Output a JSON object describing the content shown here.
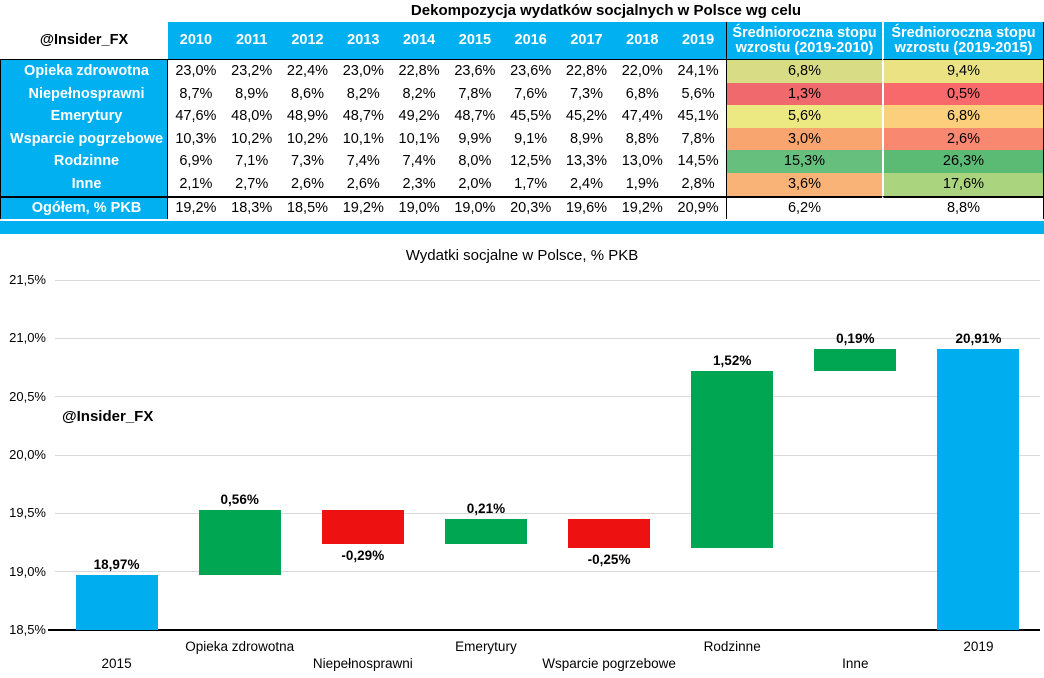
{
  "watermark": "@Insider_FX",
  "table": {
    "title": "Dekompozycja wydatków socjalnych w Polsce wg celu",
    "corner_label": "@Insider_FX",
    "years": [
      "2010",
      "2011",
      "2012",
      "2013",
      "2014",
      "2015",
      "2016",
      "2017",
      "2018",
      "2019"
    ],
    "growth_headers": [
      "Średnioroczna stopu wzrostu (2019-2010)",
      "Średnioroczna stopu wzrostu (2019-2015)"
    ],
    "rows": [
      {
        "label": "Opieka zdrowotna",
        "values": [
          "23,0%",
          "23,2%",
          "22,4%",
          "23,0%",
          "22,8%",
          "23,6%",
          "23,6%",
          "22,8%",
          "22,0%",
          "24,1%"
        ],
        "growth1": "6,8%",
        "growth1_color": "#d8dc84",
        "growth2": "9,4%",
        "growth2_color": "#ebe383"
      },
      {
        "label": "Niepełnosprawni",
        "values": [
          "8,7%",
          "8,9%",
          "8,6%",
          "8,2%",
          "8,2%",
          "7,8%",
          "7,6%",
          "7,3%",
          "6,8%",
          "5,6%"
        ],
        "growth1": "1,3%",
        "growth1_color": "#f0696c",
        "growth2": "0,5%",
        "growth2_color": "#f8696b"
      },
      {
        "label": "Emerytury",
        "values": [
          "47,6%",
          "48,0%",
          "48,9%",
          "48,7%",
          "49,2%",
          "48,7%",
          "45,5%",
          "45,2%",
          "47,4%",
          "45,1%"
        ],
        "growth1": "5,6%",
        "growth1_color": "#ece983",
        "growth2": "6,8%",
        "growth2_color": "#fccf7d"
      },
      {
        "label": "Wsparcie pogrzebowe",
        "values": [
          "10,3%",
          "10,2%",
          "10,2%",
          "10,1%",
          "10,1%",
          "9,9%",
          "9,1%",
          "8,9%",
          "8,8%",
          "7,8%"
        ],
        "growth1": "3,0%",
        "growth1_color": "#f9a56f",
        "growth2": "2,6%",
        "growth2_color": "#f8886f"
      },
      {
        "label": "Rodzinne",
        "values": [
          "6,9%",
          "7,1%",
          "7,3%",
          "7,4%",
          "7,4%",
          "8,0%",
          "12,5%",
          "13,3%",
          "13,0%",
          "14,5%"
        ],
        "growth1": "15,3%",
        "growth1_color": "#66bf7d",
        "growth2": "26,3%",
        "growth2_color": "#5bbb74"
      },
      {
        "label": "Inne",
        "values": [
          "2,1%",
          "2,7%",
          "2,6%",
          "2,6%",
          "2,3%",
          "2,0%",
          "1,7%",
          "2,4%",
          "1,9%",
          "2,8%"
        ],
        "growth1": "3,6%",
        "growth1_color": "#f9b377",
        "growth2": "17,6%",
        "growth2_color": "#abd47f"
      }
    ],
    "total_row": {
      "label": "Ogółem, % PKB",
      "values": [
        "19,2%",
        "18,3%",
        "18,5%",
        "19,2%",
        "19,0%",
        "19,0%",
        "20,3%",
        "19,6%",
        "19,2%",
        "20,9%"
      ],
      "growth1": "6,2%",
      "growth2": "8,8%"
    }
  },
  "chart_data": {
    "type": "bar",
    "subtype": "waterfall",
    "title": "Wydatki socjalne w Polsce, % PKB",
    "ylabel": "",
    "xlabel": "",
    "ylim": [
      18.5,
      21.5
    ],
    "grid": true,
    "yticks": [
      {
        "label": "21,5%",
        "value": 21.5
      },
      {
        "label": "21,0%",
        "value": 21.0
      },
      {
        "label": "20,5%",
        "value": 20.5
      },
      {
        "label": "20,0%",
        "value": 20.0
      },
      {
        "label": "19,5%",
        "value": 19.5
      },
      {
        "label": "19,0%",
        "value": 19.0
      },
      {
        "label": "18,5%",
        "value": 18.5
      }
    ],
    "bars": [
      {
        "category": "2015",
        "start": 18.5,
        "end": 18.97,
        "label": "18,97%",
        "type": "total",
        "label_row": 2
      },
      {
        "category": "Opieka zdrowotna",
        "start": 18.97,
        "end": 19.53,
        "label": "0,56%",
        "type": "increase",
        "label_row": 1
      },
      {
        "category": "Niepełnosprawni",
        "start": 19.53,
        "end": 19.24,
        "label": "-0,29%",
        "type": "decrease",
        "label_row": 2
      },
      {
        "category": "Emerytury",
        "start": 19.24,
        "end": 19.45,
        "label": "0,21%",
        "type": "increase",
        "label_row": 1
      },
      {
        "category": "Wsparcie pogrzebowe",
        "start": 19.45,
        "end": 19.2,
        "label": "-0,25%",
        "type": "decrease",
        "label_row": 2
      },
      {
        "category": "Rodzinne",
        "start": 19.2,
        "end": 20.72,
        "label": "1,52%",
        "type": "increase",
        "label_row": 1
      },
      {
        "category": "Inne",
        "start": 20.72,
        "end": 20.91,
        "label": "0,19%",
        "type": "decrease-no",
        "label_row": 2
      },
      {
        "category": "2019",
        "start": 18.5,
        "end": 20.91,
        "label": "20,91%",
        "type": "total",
        "label_row": 1
      }
    ],
    "colors": {
      "total": "#00aeef",
      "increase": "#00a651",
      "decrease": "#ee1111",
      "decrease-no": "#00a651",
      "grid": "#d9d9d9",
      "accent_cyan": "#00b0f0"
    }
  }
}
